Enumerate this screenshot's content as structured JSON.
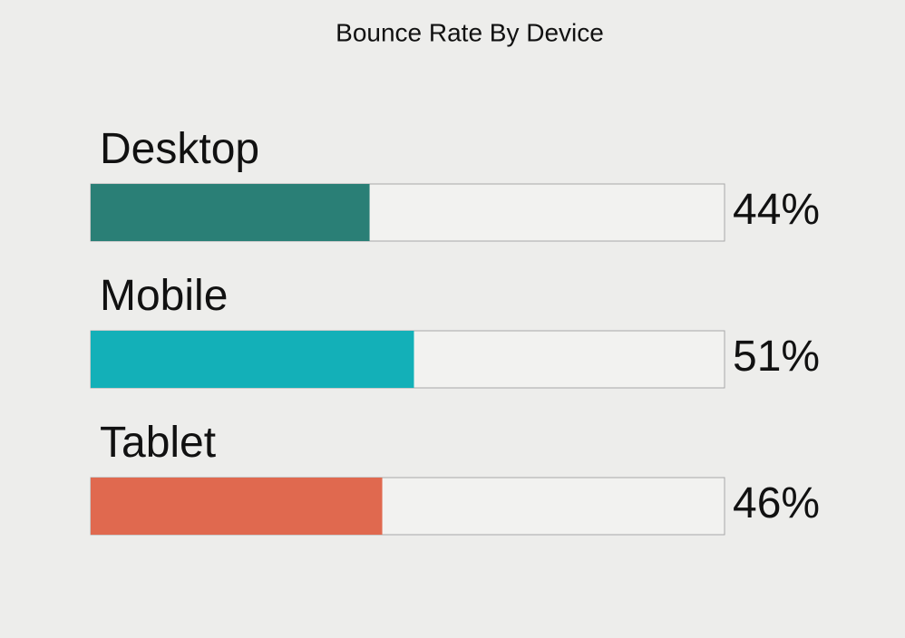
{
  "chart_data": {
    "type": "progress-bar",
    "title": "Bounce Rate By Device",
    "categories": [
      "Desktop",
      "Mobile",
      "Tablet"
    ],
    "values": [
      44,
      51,
      46
    ],
    "value_labels": [
      "44%",
      "51%",
      "46%"
    ],
    "colors": [
      "#2a7f76",
      "#13b0b8",
      "#e0694f"
    ],
    "xlim": [
      0,
      100
    ]
  }
}
